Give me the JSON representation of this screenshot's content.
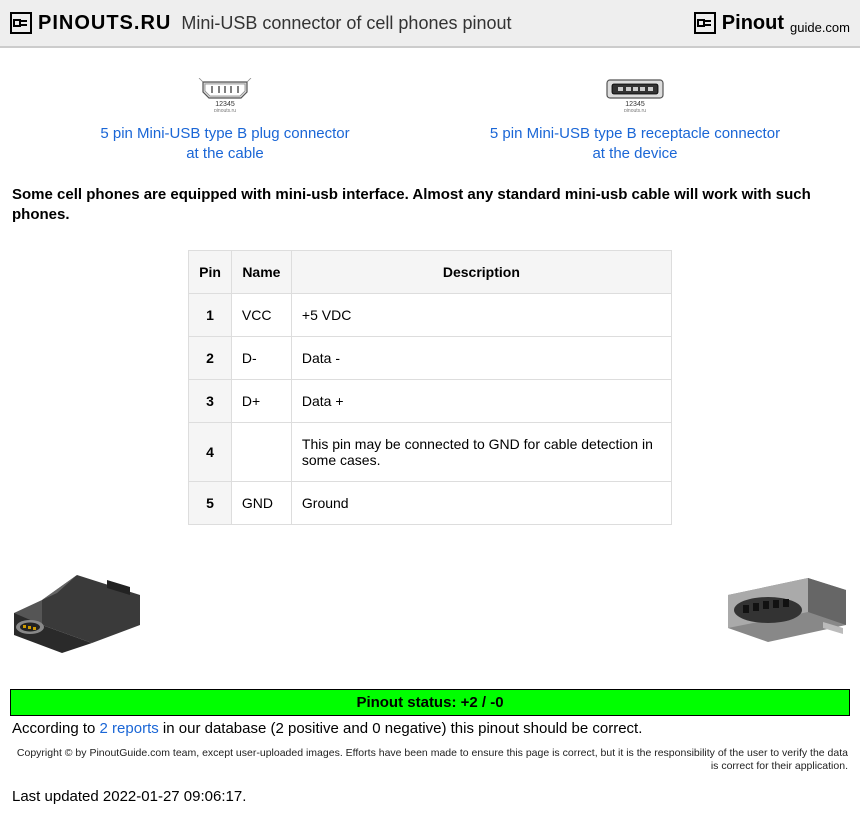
{
  "header": {
    "logo_left_text": "PINOUTS.RU",
    "page_title": "Mini-USB connector of cell phones pinout",
    "logo_right_main": "Pinout",
    "logo_right_sub": "guide.com"
  },
  "connectors": {
    "left": {
      "pinlabel": "12345",
      "brand": "pinouts.ru",
      "link_line1": "5 pin Mini-USB type B plug connector",
      "link_line2": "at the cable"
    },
    "right": {
      "pinlabel": "12345",
      "brand": "pinouts.ru",
      "link_line1": "5 pin Mini-USB type B receptacle connector",
      "link_line2": "at the device"
    }
  },
  "intro_text": "Some cell phones are equipped with mini-usb interface. Almost any standard mini-usb cable will work with such phones.",
  "table": {
    "columns": [
      "Pin",
      "Name",
      "Description"
    ],
    "rows": [
      {
        "pin": "1",
        "name": "VCC",
        "desc": "+5 VDC"
      },
      {
        "pin": "2",
        "name": "D-",
        "desc": "Data -"
      },
      {
        "pin": "3",
        "name": "D+",
        "desc": "Data +"
      },
      {
        "pin": "4",
        "name": "",
        "desc": "This pin may be connected to GND for cable detection in some cases."
      },
      {
        "pin": "5",
        "name": "GND",
        "desc": "Ground"
      }
    ]
  },
  "status_bar": "Pinout status: +2 / -0",
  "reports": {
    "prefix": "According to ",
    "link": "2 reports",
    "suffix": " in our database (2 positive and 0 negative) this pinout should be correct."
  },
  "copyright": "Copyright © by PinoutGuide.com team, except user-uploaded images. Efforts have been made to ensure this page is correct, but it is the responsibility of the user to verify the data is correct for their application.",
  "updated": "Last updated 2022-01-27 09:06:17.",
  "colors": {
    "status_bg": "#00ff00",
    "link": "#1a66d6",
    "header_bg": "#eeeeee",
    "table_border": "#dddddd",
    "table_header_bg": "#f5f5f5"
  }
}
